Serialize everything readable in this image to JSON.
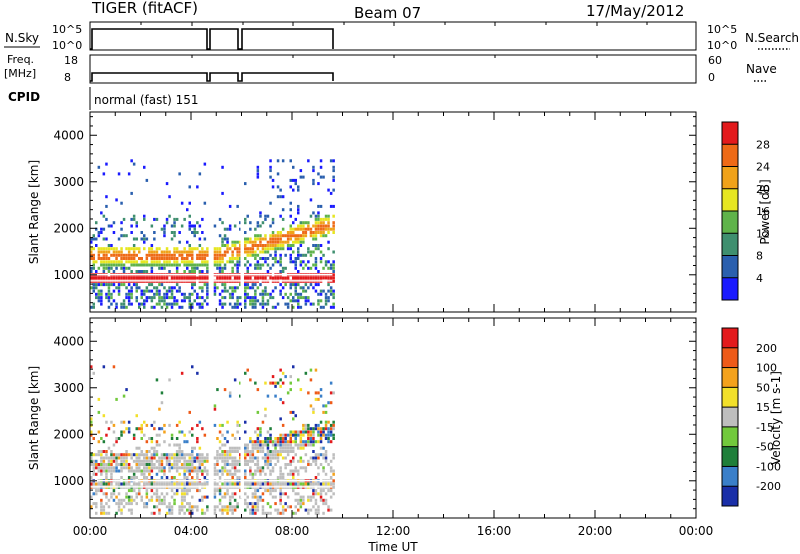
{
  "header": {
    "station": "TIGER (fitACF)",
    "beam": "Beam 07",
    "date": "17/May/2012"
  },
  "panels": {
    "noise": {
      "left_label": "N.Sky",
      "right_label": "N.Search",
      "left_ticks": [
        "10^5",
        "10^0"
      ],
      "right_ticks": [
        "10^5",
        "10^0"
      ]
    },
    "freq": {
      "left_label_1": "Freq.",
      "left_label_2": "[MHz]",
      "right_label": "Nave",
      "left_ticks": [
        "18",
        "8"
      ],
      "right_ticks": [
        "60",
        "0"
      ]
    },
    "cpid": {
      "label": "CPID",
      "value": "normal (fast) 151"
    }
  },
  "chart_data": [
    {
      "type": "heatmap",
      "title": "",
      "xlabel": "Time UT",
      "ylabel": "Slant Range [km]",
      "x_ticks": [
        "00:00",
        "04:00",
        "08:00",
        "12:00",
        "16:00",
        "20:00",
        "00:00"
      ],
      "y_ticks": [
        1000,
        2000,
        3000,
        4000
      ],
      "ylim": [
        200,
        4500
      ],
      "xlim_hours": [
        0,
        24
      ],
      "data_extent_hours": [
        0,
        9.6
      ],
      "data_gaps_hours": [
        4.75,
        6.0
      ],
      "colorbar": {
        "label": "Power [dB]",
        "ticks": [
          "4",
          "8",
          "12",
          "16",
          "20",
          "24",
          "28"
        ],
        "colors": [
          "#1a1aff",
          "#2a5fae",
          "#3f8f6f",
          "#5fb34a",
          "#e6e621",
          "#f0a21a",
          "#ee6a17",
          "#e31a1c"
        ]
      },
      "features": [
        {
          "name": "strong scatter band",
          "range_km": [
            850,
            1050
          ],
          "level_db": 28
        },
        {
          "name": "rising echo band",
          "time_h": [
            5.5,
            9.5
          ],
          "range_km": [
            1300,
            1800
          ],
          "level_db": 20
        }
      ]
    },
    {
      "type": "heatmap",
      "title": "",
      "xlabel": "Time UT",
      "ylabel": "Slant Range [km]",
      "x_ticks": [
        "00:00",
        "04:00",
        "08:00",
        "12:00",
        "16:00",
        "20:00",
        "00:00"
      ],
      "y_ticks": [
        1000,
        2000,
        3000,
        4000
      ],
      "ylim": [
        200,
        4500
      ],
      "xlim_hours": [
        0,
        24
      ],
      "colorbar": {
        "label": "Velocity [m s-1]",
        "ticks": [
          "200",
          "100",
          "50",
          "15",
          "-15",
          "-50",
          "-100",
          "-200"
        ],
        "colors": [
          "#1a2fa8",
          "#3a7fc9",
          "#1f7f3a",
          "#72c93c",
          "#bebebe",
          "#f2e02a",
          "#f4a21c",
          "#ee5a18",
          "#e31a1c"
        ]
      }
    }
  ],
  "noise_trace": {
    "level_high": 10
  },
  "freq_trace": {
    "level_mhz": 10
  }
}
